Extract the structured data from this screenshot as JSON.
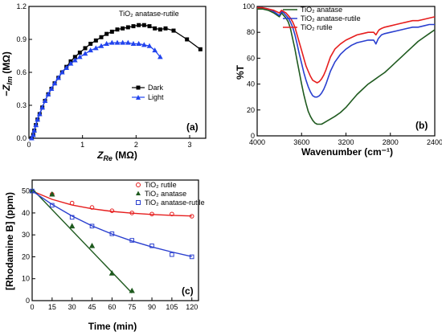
{
  "chart_data": [
    {
      "type": "scatter",
      "panel_label": "(a)",
      "annotation": "TiO₂ anatase-rutile",
      "xlabel": "Z_Re (MΩ)",
      "ylabel": "−Z_Im (MΩ)",
      "xlim": [
        0,
        3.3
      ],
      "ylim": [
        0,
        1.2
      ],
      "xticks": [
        0,
        1,
        2,
        3
      ],
      "yticks": [
        0.0,
        0.3,
        0.6,
        0.9,
        1.2
      ],
      "ytick_labels": [
        "0.0",
        "0.3",
        "0.6",
        "0.9",
        "1.2"
      ],
      "legend_position": "right-middle",
      "series": [
        {
          "name": "Dark",
          "color": "#000000",
          "marker": "square",
          "x": [
            0.05,
            0.08,
            0.1,
            0.13,
            0.16,
            0.2,
            0.25,
            0.3,
            0.36,
            0.42,
            0.48,
            0.55,
            0.62,
            0.7,
            0.78,
            0.86,
            0.95,
            1.05,
            1.15,
            1.25,
            1.35,
            1.45,
            1.55,
            1.65,
            1.75,
            1.85,
            1.95,
            2.05,
            2.15,
            2.25,
            2.35,
            2.45,
            2.55,
            2.7,
            2.95,
            3.2
          ],
          "y": [
            0.0,
            0.03,
            0.07,
            0.12,
            0.17,
            0.22,
            0.28,
            0.34,
            0.4,
            0.45,
            0.5,
            0.55,
            0.6,
            0.65,
            0.7,
            0.74,
            0.78,
            0.82,
            0.86,
            0.89,
            0.92,
            0.95,
            0.97,
            0.99,
            1.0,
            1.01,
            1.02,
            1.03,
            1.03,
            1.02,
            1.0,
            0.99,
            1.0,
            0.98,
            0.9,
            0.81
          ]
        },
        {
          "name": "Light",
          "color": "#2244ee",
          "marker": "triangle",
          "x": [
            0.05,
            0.08,
            0.1,
            0.13,
            0.16,
            0.2,
            0.25,
            0.3,
            0.36,
            0.42,
            0.48,
            0.55,
            0.62,
            0.7,
            0.78,
            0.86,
            0.95,
            1.05,
            1.15,
            1.25,
            1.35,
            1.45,
            1.55,
            1.65,
            1.75,
            1.85,
            1.95,
            2.05,
            2.15,
            2.25,
            2.35,
            2.45
          ],
          "y": [
            0.0,
            0.03,
            0.07,
            0.12,
            0.17,
            0.22,
            0.28,
            0.34,
            0.4,
            0.45,
            0.5,
            0.55,
            0.6,
            0.64,
            0.68,
            0.71,
            0.74,
            0.77,
            0.8,
            0.82,
            0.84,
            0.86,
            0.87,
            0.87,
            0.87,
            0.87,
            0.86,
            0.86,
            0.85,
            0.84,
            0.8,
            0.74
          ]
        }
      ]
    },
    {
      "type": "line",
      "panel_label": "(b)",
      "xlabel": "Wavenumber (cm⁻¹)",
      "ylabel": "%T",
      "xlim": [
        4000,
        2400
      ],
      "ylim": [
        0,
        100
      ],
      "xticks": [
        4000,
        3600,
        3200,
        2800,
        2400
      ],
      "yticks": [
        0,
        20,
        40,
        60,
        80,
        100
      ],
      "legend_position": "top-center",
      "series": [
        {
          "name": "TiO₂ anatase",
          "color": "#1f5a1f",
          "x": [
            4000,
            3950,
            3900,
            3850,
            3800,
            3780,
            3760,
            3740,
            3720,
            3700,
            3680,
            3660,
            3640,
            3620,
            3600,
            3580,
            3560,
            3540,
            3520,
            3500,
            3480,
            3460,
            3440,
            3420,
            3400,
            3380,
            3360,
            3340,
            3300,
            3250,
            3200,
            3150,
            3100,
            3050,
            3000,
            2950,
            2900,
            2850,
            2800,
            2750,
            2700,
            2650,
            2600,
            2550,
            2500,
            2450,
            2400
          ],
          "y": [
            98,
            98,
            97,
            95,
            92,
            95,
            93,
            91,
            88,
            83,
            75,
            67,
            58,
            49,
            40,
            32,
            25,
            19,
            15,
            12,
            10,
            9,
            9,
            9,
            10,
            11,
            12,
            13,
            15,
            18,
            22,
            27,
            32,
            36,
            40,
            43,
            46,
            49,
            53,
            57,
            61,
            65,
            69,
            73,
            76,
            79,
            82
          ]
        },
        {
          "name": "TiO₂ anatase-rutile",
          "color": "#2a3fcf",
          "x": [
            4000,
            3950,
            3900,
            3850,
            3800,
            3780,
            3760,
            3740,
            3720,
            3700,
            3680,
            3660,
            3640,
            3620,
            3600,
            3580,
            3560,
            3540,
            3520,
            3500,
            3480,
            3460,
            3440,
            3420,
            3400,
            3380,
            3360,
            3340,
            3300,
            3250,
            3200,
            3150,
            3100,
            3050,
            3000,
            2950,
            2930,
            2910,
            2900,
            2880,
            2850,
            2800,
            2750,
            2700,
            2650,
            2600,
            2550,
            2500,
            2450,
            2400
          ],
          "y": [
            99,
            99,
            98,
            96,
            93,
            96,
            95,
            93,
            91,
            88,
            84,
            78,
            71,
            63,
            56,
            49,
            43,
            38,
            34,
            31,
            30,
            30,
            31,
            33,
            36,
            40,
            45,
            50,
            57,
            63,
            67,
            70,
            72,
            73,
            74,
            74,
            71,
            75,
            76,
            78,
            79,
            80,
            81,
            82,
            83,
            84,
            84,
            85,
            86,
            86
          ]
        },
        {
          "name": "TiO₂ rutile",
          "color": "#e61e1e",
          "x": [
            4000,
            3950,
            3900,
            3850,
            3800,
            3780,
            3760,
            3740,
            3720,
            3700,
            3680,
            3660,
            3640,
            3620,
            3600,
            3580,
            3560,
            3540,
            3520,
            3500,
            3480,
            3460,
            3440,
            3420,
            3400,
            3380,
            3360,
            3340,
            3300,
            3250,
            3200,
            3150,
            3100,
            3050,
            3000,
            2950,
            2930,
            2910,
            2900,
            2880,
            2850,
            2800,
            2750,
            2700,
            2650,
            2600,
            2550,
            2500,
            2450,
            2400
          ],
          "y": [
            99,
            99,
            98,
            97,
            95,
            97,
            96,
            95,
            93,
            91,
            88,
            84,
            78,
            72,
            66,
            60,
            54,
            50,
            46,
            43,
            42,
            41,
            42,
            44,
            47,
            51,
            56,
            61,
            67,
            71,
            74,
            76,
            78,
            79,
            80,
            80,
            78,
            81,
            82,
            83,
            84,
            85,
            86,
            87,
            88,
            89,
            89,
            90,
            91,
            92
          ]
        }
      ]
    },
    {
      "type": "scatter",
      "panel_label": "(c)",
      "xlabel": "Time (min)",
      "ylabel": "[Rhodamine B] (ppm)",
      "xlim": [
        0,
        125
      ],
      "ylim": [
        0,
        55
      ],
      "xticks": [
        0,
        15,
        30,
        45,
        60,
        75,
        90,
        105,
        120
      ],
      "yticks": [
        0,
        10,
        20,
        30,
        40,
        50
      ],
      "legend_position": "top-right",
      "series": [
        {
          "name": "TiO₂ rutile",
          "color": "#e61e1e",
          "marker": "circle",
          "x": [
            0,
            15,
            30,
            45,
            60,
            75,
            90,
            105,
            120
          ],
          "y": [
            50,
            48.5,
            44.5,
            42.5,
            41,
            40,
            39.5,
            39.5,
            38.5
          ],
          "fit": [
            [
              0,
              50
            ],
            [
              15,
              46.2
            ],
            [
              30,
              43.6
            ],
            [
              45,
              41.9
            ],
            [
              60,
              40.7
            ],
            [
              75,
              39.9
            ],
            [
              90,
              39.3
            ],
            [
              105,
              38.9
            ],
            [
              120,
              38.6
            ]
          ]
        },
        {
          "name": "TiO₂ anatase",
          "color": "#1f5a1f",
          "marker": "triangle",
          "x": [
            0,
            15,
            30,
            45,
            60,
            75
          ],
          "y": [
            50,
            48.5,
            34,
            25,
            12.5,
            4.5
          ],
          "fit": [
            [
              0,
              51
            ],
            [
              75,
              3.5
            ]
          ]
        },
        {
          "name": "TiO₂ anatase-rutile",
          "color": "#2a3fcf",
          "marker": "square",
          "x": [
            0,
            15,
            30,
            45,
            60,
            75,
            90,
            105,
            120
          ],
          "y": [
            50,
            43.5,
            38,
            34,
            30.5,
            27.5,
            25,
            21,
            20
          ],
          "fit": [
            [
              0,
              50
            ],
            [
              15,
              43.9
            ],
            [
              30,
              38.6
            ],
            [
              45,
              34.1
            ],
            [
              60,
              30.4
            ],
            [
              75,
              27.2
            ],
            [
              90,
              24.5
            ],
            [
              105,
              22.2
            ],
            [
              120,
              20.1
            ]
          ]
        }
      ]
    }
  ]
}
